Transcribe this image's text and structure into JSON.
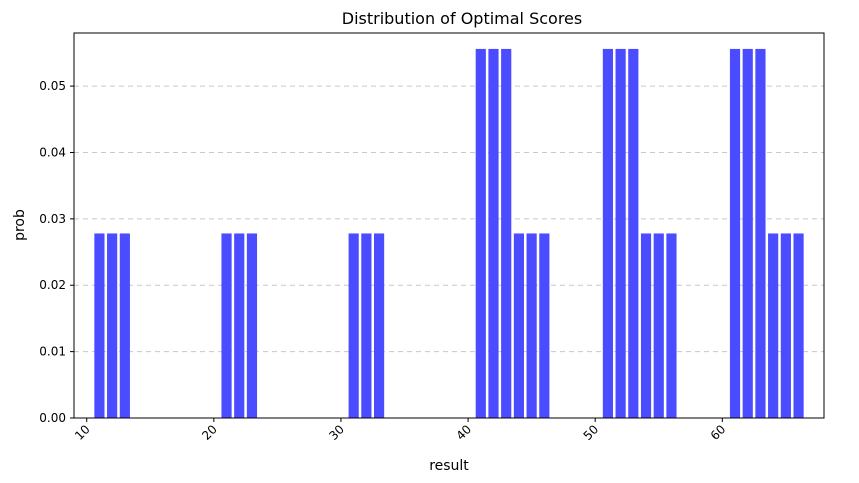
{
  "chart_data": {
    "type": "bar",
    "title": "Distribution of Optimal Scores",
    "xlabel": "result",
    "ylabel": "prob",
    "xlim": [
      9,
      68
    ],
    "ylim": [
      0,
      0.058
    ],
    "xticks": [
      10,
      20,
      30,
      40,
      50,
      60
    ],
    "xtick_labels": [
      "10",
      "20",
      "30",
      "40",
      "50",
      "60"
    ],
    "yticks": [
      0,
      0.01,
      0.02,
      0.03,
      0.04,
      0.05
    ],
    "ytick_labels": [
      "0.00",
      "0.01",
      "0.02",
      "0.03",
      "0.04",
      "0.05"
    ],
    "grid": "y-dashed",
    "bar_color": "#4b4bff",
    "x": [
      11,
      12,
      13,
      21,
      22,
      23,
      31,
      32,
      33,
      41,
      42,
      43,
      44,
      45,
      46,
      51,
      52,
      53,
      54,
      55,
      56,
      61,
      62,
      63,
      64,
      65,
      66
    ],
    "values": [
      0.0278,
      0.0278,
      0.0278,
      0.0278,
      0.0278,
      0.0278,
      0.0278,
      0.0278,
      0.0278,
      0.0556,
      0.0556,
      0.0556,
      0.0278,
      0.0278,
      0.0278,
      0.0556,
      0.0556,
      0.0556,
      0.0278,
      0.0278,
      0.0278,
      0.0556,
      0.0556,
      0.0556,
      0.0278,
      0.0278,
      0.0278
    ]
  }
}
